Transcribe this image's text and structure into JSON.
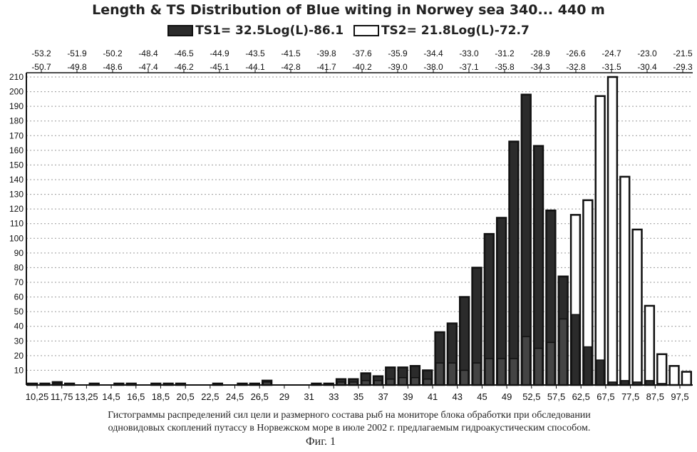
{
  "title": "Length & TS Distribution of Blue witing in Norwey sea   340... 440 m",
  "legend": {
    "ts1": "TS1= 32.5Log(L)-86.1",
    "ts2": "TS2= 21.8Log(L)-72.7"
  },
  "caption": {
    "line1": "Гистограммы распределений сил цели и размерного состава рыб на мониторе блока обработки при обследовании",
    "line2": "одновидовых скоплений путассу в Норвежском море в июле 2002 г. предлагаемым  гидроакустическим способом.",
    "fig": "Фиг. 1"
  },
  "chart_data": {
    "type": "bar",
    "ylim": [
      0,
      210
    ],
    "yticks": [
      10,
      20,
      30,
      40,
      50,
      60,
      70,
      80,
      90,
      100,
      110,
      120,
      130,
      140,
      150,
      160,
      170,
      180,
      190,
      200,
      210
    ],
    "x_tick_labels": [
      "10,25",
      "11,75",
      "13,25",
      "14,5",
      "16,5",
      "18,5",
      "20,5",
      "22,5",
      "24,5",
      "26,5",
      "29",
      "31",
      "33",
      "35",
      "37",
      "39",
      "41",
      "43",
      "45",
      "49",
      "52,5",
      "57,5",
      "62,5",
      "67,5",
      "77,5",
      "87,5",
      "97,5"
    ],
    "top_axis_upper": [
      "-53.2",
      "-51.9",
      "-50.2",
      "-48.4",
      "-46.5",
      "-44.9",
      "-43.5",
      "-41.5",
      "-39.8",
      "-37.6",
      "-35.9",
      "-34.4",
      "-33.0",
      "-31.2",
      "-28.9",
      "-26.6",
      "-24.7",
      "-23.0",
      "-21.5"
    ],
    "top_axis_lower": [
      "-50.7",
      "-49.8",
      "-48.6",
      "-47.4",
      "-46.2",
      "-45.1",
      "-44.1",
      "-42.8",
      "-41.7",
      "-40.2",
      "-39.0",
      "-38.0",
      "-37.1",
      "-35.8",
      "-34.3",
      "-32.8",
      "-31.5",
      "-30.4",
      "-29.3"
    ],
    "series": [
      {
        "name": "TS1= 32.5Log(L)-86.1",
        "color": "#2b2b2b",
        "values": [
          1,
          1,
          2,
          1,
          0,
          1,
          0,
          1,
          1,
          0,
          1,
          1,
          1,
          0,
          0,
          1,
          0,
          1,
          1,
          3,
          0,
          0,
          0,
          1,
          1,
          4,
          4,
          8,
          6,
          12,
          12,
          13,
          10,
          36,
          42,
          60,
          80,
          103,
          114,
          166,
          198,
          163,
          119,
          74,
          48,
          26,
          17,
          2,
          3,
          2,
          3,
          1,
          0,
          0
        ]
      },
      {
        "name": "TS2= 21.8Log(L)-72.7",
        "color": "#ffffff",
        "values": [
          1,
          1,
          1,
          1,
          0,
          1,
          0,
          1,
          1,
          0,
          1,
          1,
          1,
          0,
          0,
          0,
          0,
          0,
          0,
          2,
          0,
          0,
          0,
          0,
          0,
          2,
          2,
          3,
          3,
          4,
          5,
          5,
          4,
          15,
          15,
          10,
          15,
          18,
          18,
          18,
          33,
          25,
          29,
          45,
          116,
          126,
          197,
          210,
          142,
          106,
          54,
          21,
          13,
          9
        ]
      }
    ]
  }
}
